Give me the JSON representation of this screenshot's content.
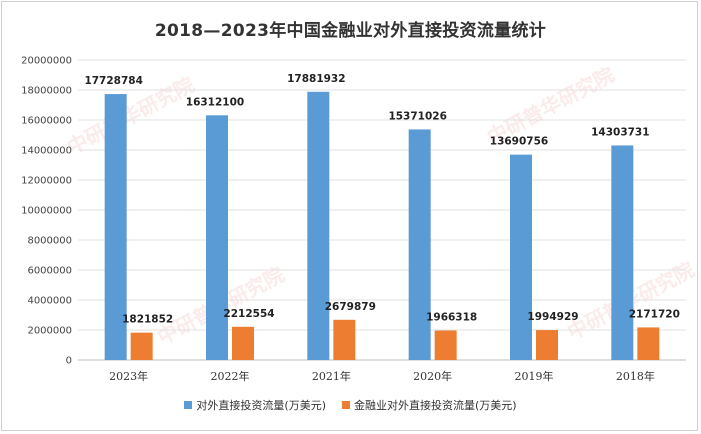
{
  "title": "2018—2023年中国金融业对外直接投资流量统计",
  "chart_data": {
    "type": "bar",
    "categories": [
      "2023年",
      "2022年",
      "2021年",
      "2020年",
      "2019年",
      "2018年"
    ],
    "series": [
      {
        "name": "对外直接投资流量(万美元)",
        "color": "#5b9bd5",
        "values": [
          17728784,
          16312100,
          17881932,
          15371026,
          13690756,
          14303731
        ]
      },
      {
        "name": "金融业对外直接投资流量(万美元)",
        "color": "#ed7d31",
        "values": [
          1821852,
          2212554,
          2679879,
          1966318,
          1994929,
          2171720
        ]
      }
    ],
    "ylim": [
      0,
      20000000
    ],
    "yticks": [
      0,
      2000000,
      4000000,
      6000000,
      8000000,
      10000000,
      12000000,
      14000000,
      16000000,
      18000000,
      20000000
    ],
    "grid": true,
    "legend_position": "bottom"
  },
  "watermark": {
    "text": "中研普华研究院",
    "url": "www.ChinaIRN.COM"
  }
}
